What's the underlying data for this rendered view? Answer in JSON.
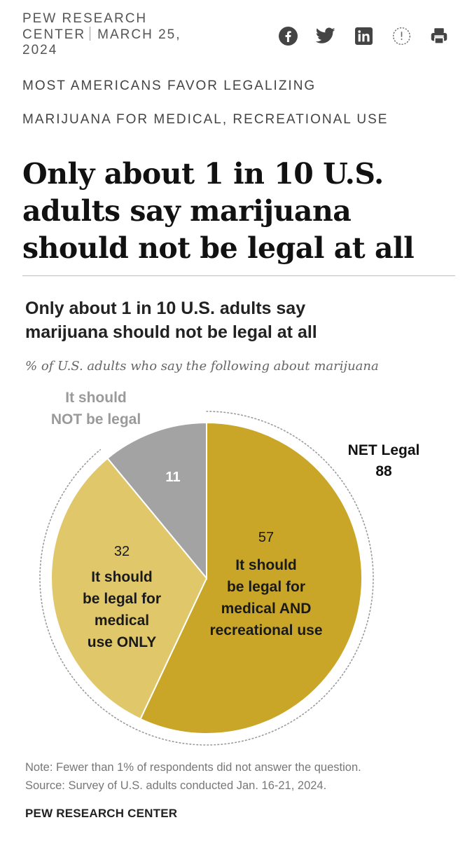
{
  "header": {
    "org_line1": "PEW RESEARCH",
    "org_line2": "CENTER",
    "date_part1": "MARCH 25,",
    "date_part2": "2024",
    "share_icons": [
      "facebook-icon",
      "twitter-icon",
      "linkedin-icon",
      "clock-icon",
      "print-icon"
    ]
  },
  "kicker": {
    "line1": "MOST AMERICANS FAVOR LEGALIZING",
    "line2": "MARIJUANA FOR MEDICAL, RECREATIONAL USE"
  },
  "headline": {
    "line1": "Only about 1 in 10 U.S.",
    "line2": "adults say marijuana",
    "line3": "should not be legal at all"
  },
  "chart_data": {
    "type": "pie",
    "title_line1": "Only about 1 in 10 U.S. adults say",
    "title_line2": "marijuana should not be legal at all",
    "subtitle": "% of U.S. adults who say the following about marijuana",
    "slices": [
      {
        "label": "It should be legal for medical AND recreational use",
        "value": 57,
        "color": "#c9a528",
        "label_lines": [
          "It should",
          "be legal for",
          "medical AND",
          "recreational use"
        ]
      },
      {
        "label": "It should be legal for medical use ONLY",
        "value": 32,
        "color": "#e0c86a",
        "label_lines": [
          "It should",
          "be legal for",
          "medical",
          "use ONLY"
        ]
      },
      {
        "label": "It should NOT be legal",
        "value": 11,
        "color": "#a3a3a3",
        "label_lines": [
          "It should",
          "NOT be legal"
        ]
      }
    ],
    "net": {
      "label": "NET Legal",
      "value": 88
    }
  },
  "notes": {
    "note": "Note: Fewer than 1% of respondents did not answer the question.",
    "source": "Source: Survey of U.S. adults conducted Jan. 16-21, 2024.",
    "brand": "PEW RESEARCH CENTER"
  },
  "colors": {
    "dark_gold": "#c9a528",
    "light_gold": "#e0c86a",
    "gray": "#a3a3a3",
    "gray_label": "#9a9a9a"
  }
}
